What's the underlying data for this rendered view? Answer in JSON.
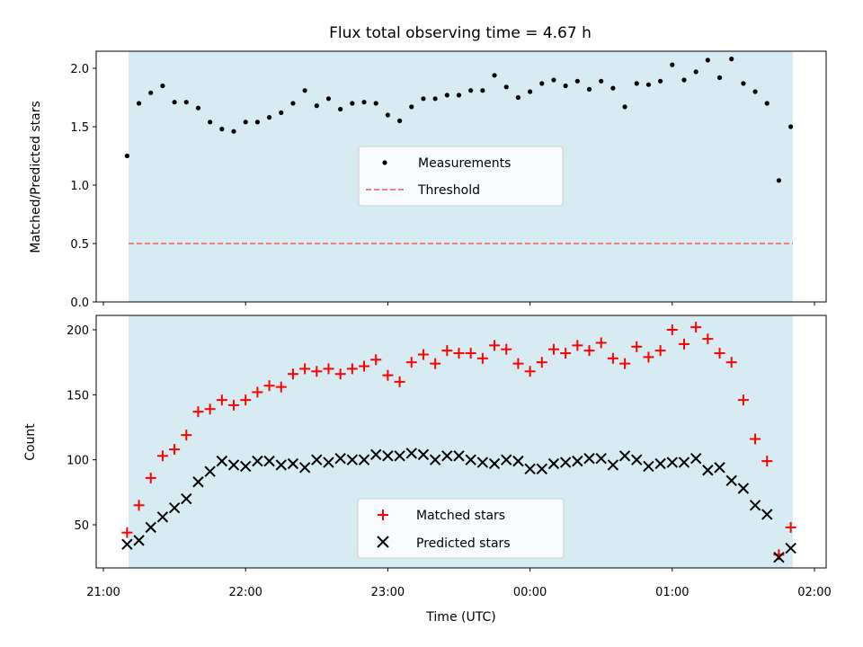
{
  "chart_data": [
    {
      "type": "scatter",
      "title": "Flux total observing time = 4.67 h",
      "xlabel": "",
      "ylabel": "Matched/Predicted stars",
      "ylim": [
        0.0,
        2.15
      ],
      "yticks": [
        "0.0",
        "0.5",
        "1.0",
        "1.5",
        "2.0"
      ],
      "xlim": [
        "21:00",
        "02:00"
      ],
      "shaded_interval": [
        "21:10",
        "23:40 + 2h"
      ],
      "legend_position": "center",
      "legend": [
        "Measurements",
        "Threshold"
      ],
      "threshold": 0.5,
      "series": [
        {
          "name": "Measurements",
          "x": [
            "21:10",
            "21:15",
            "21:20",
            "21:25",
            "21:30",
            "21:35",
            "21:40",
            "21:45",
            "21:50",
            "21:55",
            "22:00",
            "22:05",
            "22:10",
            "22:15",
            "22:20",
            "22:25",
            "22:30",
            "22:35",
            "22:40",
            "22:45",
            "22:50",
            "22:55",
            "23:00",
            "23:05",
            "23:10",
            "23:15",
            "23:20",
            "23:25",
            "23:30",
            "23:35",
            "23:40",
            "23:45",
            "23:50",
            "23:55",
            "00:00",
            "00:05",
            "00:10",
            "00:15",
            "00:20",
            "00:25",
            "00:30",
            "00:35",
            "00:40",
            "00:45",
            "00:50",
            "00:55",
            "01:00",
            "01:05",
            "01:10",
            "01:15",
            "01:20",
            "01:25",
            "01:30",
            "01:35",
            "01:40",
            "01:45"
          ],
          "values": [
            1.25,
            1.7,
            1.79,
            1.85,
            1.71,
            1.71,
            1.66,
            1.54,
            1.48,
            1.46,
            1.54,
            1.54,
            1.58,
            1.62,
            1.7,
            1.81,
            1.68,
            1.74,
            1.65,
            1.7,
            1.71,
            1.7,
            1.6,
            1.55,
            1.67,
            1.74,
            1.74,
            1.77,
            1.77,
            1.81,
            1.81,
            1.94,
            1.84,
            1.75,
            1.8,
            1.87,
            1.9,
            1.85,
            1.89,
            1.82,
            1.89,
            1.83,
            1.67,
            1.87,
            1.86,
            1.89,
            2.03,
            1.9,
            1.97,
            2.07,
            1.92,
            2.08,
            1.87,
            1.8,
            1.7,
            1.04
          ]
        }
      ],
      "last_point": {
        "x": "01:50",
        "value": 1.5
      }
    },
    {
      "type": "scatter",
      "title": "",
      "xlabel": "Time (UTC)",
      "ylabel": "Count",
      "ylim": [
        15,
        212
      ],
      "yticks": [
        "50",
        "100",
        "150",
        "200"
      ],
      "xticks": [
        "21:00",
        "22:00",
        "23:00",
        "00:00",
        "01:00",
        "02:00"
      ],
      "legend_position": "lower center",
      "legend": [
        "Matched stars",
        "Predicted stars"
      ],
      "series": [
        {
          "name": "Matched stars",
          "color": "#ff0000",
          "values": [
            44,
            65,
            86,
            103,
            108,
            119,
            137,
            139,
            146,
            142,
            146,
            152,
            157,
            156,
            166,
            170,
            168,
            170,
            166,
            170,
            172,
            177,
            165,
            160,
            175,
            181,
            174,
            184,
            182,
            182,
            178,
            188,
            185,
            174,
            168,
            175,
            185,
            182,
            188,
            184,
            190,
            178,
            174,
            187,
            179,
            184,
            200,
            189,
            202,
            193,
            182,
            175,
            146,
            116,
            99,
            27,
            48
          ]
        },
        {
          "name": "Predicted stars",
          "color": "#000000",
          "values": [
            35,
            38,
            48,
            56,
            63,
            70,
            83,
            91,
            99,
            96,
            95,
            99,
            99,
            96,
            97,
            94,
            100,
            98,
            101,
            100,
            100,
            104,
            103,
            103,
            105,
            104,
            100,
            103,
            103,
            100,
            98,
            97,
            100,
            99,
            93,
            93,
            97,
            98,
            99,
            101,
            101,
            96,
            103,
            100,
            95,
            97,
            98,
            98,
            101,
            92,
            94,
            84,
            78,
            65,
            58,
            25,
            32
          ]
        }
      ]
    }
  ]
}
